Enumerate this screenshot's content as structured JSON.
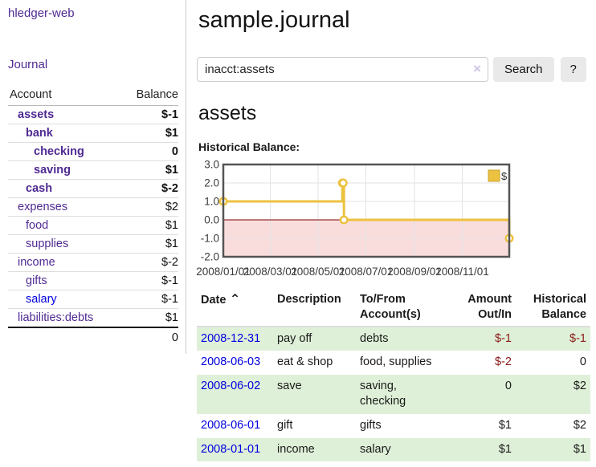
{
  "app": {
    "title": "hledger-web"
  },
  "colors": {
    "accent_purple": "#4f2a93",
    "link_blue": "#0000e0",
    "negative_strong": "#8b1a1a",
    "negative_soft": "#b98080",
    "row_shade_green": "#dff0d8",
    "series_yellow": "#edc240"
  },
  "sidebar": {
    "journal_link": "Journal",
    "accounts": {
      "header_account": "Account",
      "header_balance": "Balance",
      "rows": [
        {
          "account": "assets",
          "balance": "$-1",
          "depth": 0,
          "strong": true,
          "balance_tone": "neg-strong",
          "link_tone": "purple"
        },
        {
          "account": "bank",
          "balance": "$1",
          "depth": 1,
          "strong": true,
          "balance_tone": "",
          "link_tone": "purple"
        },
        {
          "account": "checking",
          "balance": "0",
          "depth": 2,
          "strong": true,
          "balance_tone": "",
          "link_tone": "purple"
        },
        {
          "account": "saving",
          "balance": "$1",
          "depth": 2,
          "strong": true,
          "balance_tone": "",
          "link_tone": "purple"
        },
        {
          "account": "cash",
          "balance": "$-2",
          "depth": 1,
          "strong": true,
          "balance_tone": "neg-strong",
          "link_tone": "purple"
        },
        {
          "account": "expenses",
          "balance": "$2",
          "depth": 0,
          "strong": false,
          "balance_tone": "",
          "link_tone": "purple"
        },
        {
          "account": "food",
          "balance": "$1",
          "depth": 1,
          "strong": false,
          "balance_tone": "",
          "link_tone": "purple"
        },
        {
          "account": "supplies",
          "balance": "$1",
          "depth": 1,
          "strong": false,
          "balance_tone": "",
          "link_tone": "purple"
        },
        {
          "account": "income",
          "balance": "$-2",
          "depth": 0,
          "strong": false,
          "balance_tone": "neg-soft",
          "link_tone": "purple"
        },
        {
          "account": "gifts",
          "balance": "$-1",
          "depth": 1,
          "strong": false,
          "balance_tone": "neg-soft",
          "link_tone": "purple"
        },
        {
          "account": "salary",
          "balance": "$-1",
          "depth": 1,
          "strong": false,
          "balance_tone": "neg-soft",
          "link_tone": "blue"
        },
        {
          "account": "liabilities:debts",
          "balance": "$1",
          "depth": 0,
          "strong": false,
          "balance_tone": "",
          "link_tone": "purple"
        }
      ],
      "total": "0"
    }
  },
  "main": {
    "title": "sample.journal",
    "search": {
      "value": "inacct:assets",
      "clear_icon": "×",
      "button_label": "Search",
      "help_label": "?"
    },
    "account_heading": "assets",
    "chart_heading": "Historical Balance:",
    "transactions": {
      "sort_icon": "⌃",
      "columns": [
        {
          "lines": [
            "Date"
          ],
          "align": "left",
          "sortable": true
        },
        {
          "lines": [
            "Description"
          ],
          "align": "left",
          "sortable": false
        },
        {
          "lines": [
            "To/From",
            "Account(s)"
          ],
          "align": "left",
          "sortable": false
        },
        {
          "lines": [
            "Amount",
            "Out/In"
          ],
          "align": "right",
          "sortable": false
        },
        {
          "lines": [
            "Historical",
            "Balance"
          ],
          "align": "right",
          "sortable": false
        }
      ],
      "rows": [
        {
          "date": "2008-12-31",
          "description": "pay off",
          "accounts": "debts",
          "amount": "$-1",
          "amount_tone": "neg",
          "balance": "$-1",
          "balance_tone": "neg",
          "shaded": true
        },
        {
          "date": "2008-06-03",
          "description": "eat & shop",
          "accounts": "food, supplies",
          "amount": "$-2",
          "amount_tone": "neg",
          "balance": "0",
          "balance_tone": "",
          "shaded": false
        },
        {
          "date": "2008-06-02",
          "description": "save",
          "accounts": "saving, checking",
          "amount": "0",
          "amount_tone": "",
          "balance": "$2",
          "balance_tone": "",
          "shaded": true
        },
        {
          "date": "2008-06-01",
          "description": "gift",
          "accounts": "gifts",
          "amount": "$1",
          "amount_tone": "",
          "balance": "$2",
          "balance_tone": "",
          "shaded": false
        },
        {
          "date": "2008-01-01",
          "description": "income",
          "accounts": "salary",
          "amount": "$1",
          "amount_tone": "",
          "balance": "$1",
          "balance_tone": "",
          "shaded": true
        }
      ]
    }
  },
  "chart_data": {
    "type": "line",
    "step": true,
    "title": "Historical Balance:",
    "grid": true,
    "legend_position": "top-right",
    "legend": [
      {
        "label": "$",
        "color": "#edc240"
      }
    ],
    "ylim": [
      -2,
      3
    ],
    "yticks": [
      {
        "v": 3,
        "label": "3.0"
      },
      {
        "v": 2,
        "label": "2.0"
      },
      {
        "v": 1,
        "label": "1.0"
      },
      {
        "v": 0,
        "label": "0.0"
      },
      {
        "v": -1,
        "label": "-1.0"
      },
      {
        "v": -2,
        "label": "-2.0"
      }
    ],
    "x_is_time": true,
    "x_range_days": 365,
    "xticks": [
      {
        "day": 0,
        "label": "2008/01/01"
      },
      {
        "day": 60,
        "label": "2008/03/01"
      },
      {
        "day": 121,
        "label": "2008/05/01"
      },
      {
        "day": 182,
        "label": "2008/07/01"
      },
      {
        "day": 244,
        "label": "2008/09/01"
      },
      {
        "day": 305,
        "label": "2008/11/01"
      }
    ],
    "series": [
      {
        "name": "$",
        "color": "#edc240",
        "points": [
          {
            "date": "2008-01-01",
            "day": 0,
            "value": 1
          },
          {
            "date": "2008-06-01",
            "day": 152,
            "value": 2
          },
          {
            "date": "2008-06-02",
            "day": 153,
            "value": 2
          },
          {
            "date": "2008-06-03",
            "day": 154,
            "value": 0
          },
          {
            "date": "2008-12-31",
            "day": 365,
            "value": -1
          }
        ]
      }
    ],
    "negative_region_fill": "#f9dddd",
    "zero_line_color": "#7d0101"
  }
}
